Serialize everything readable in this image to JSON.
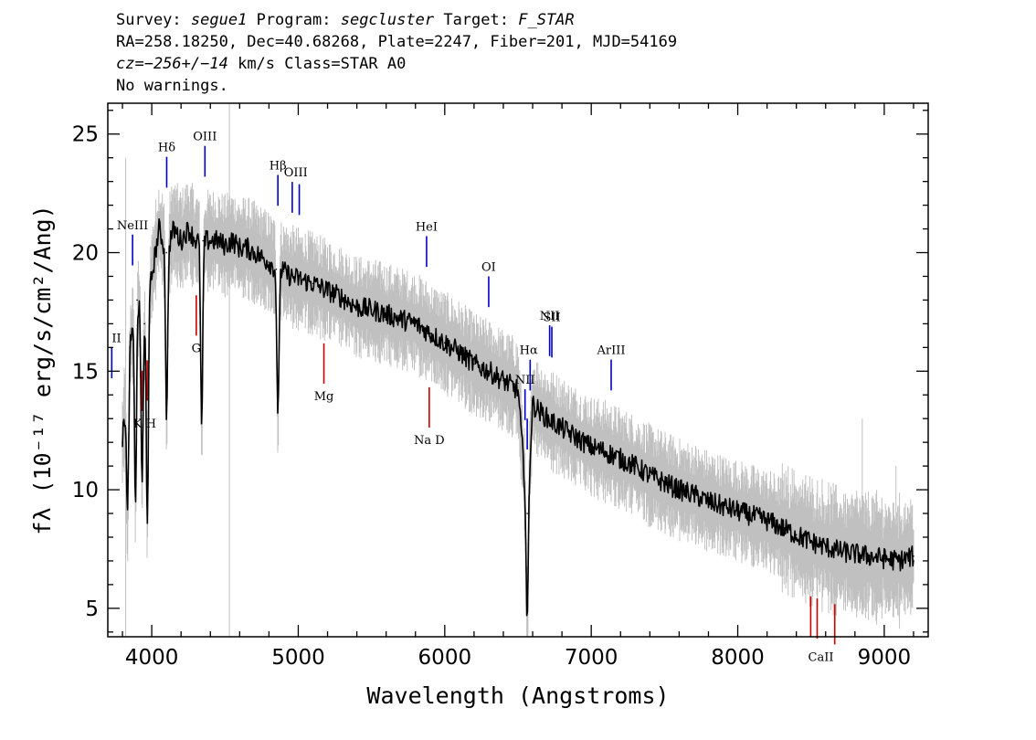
{
  "header": {
    "survey_label": "Survey:",
    "survey": "segue1",
    "program_label": "Program:",
    "program": "segcluster",
    "target_label": "Target:",
    "target": "F_STAR",
    "line2": "RA=258.18250, Dec=40.68268, Plate=2247, Fiber=201, MJD=54169",
    "cz_label": "cz=",
    "cz_value": "−256+/−14",
    "cz_rest": " km/s Class=STAR A0",
    "line4": "No warnings."
  },
  "chart_data": {
    "type": "line",
    "xlabel": "Wavelength (Angstroms)",
    "ylabel": "fλ (10⁻¹⁷ erg/s/cm²/Ang)",
    "xlim": [
      3700,
      9300
    ],
    "ylim": [
      3.8,
      26.3
    ],
    "x_ticks": [
      4000,
      5000,
      6000,
      7000,
      8000,
      9000
    ],
    "y_ticks": [
      5,
      10,
      15,
      20,
      25
    ],
    "series": [
      {
        "color": "#000000",
        "style": "spectrum",
        "x": [
          3800,
          3850,
          3900,
          3950,
          4000,
          4050,
          4100,
          4150,
          4200,
          4250,
          4300,
          4350,
          4400,
          4450,
          4500,
          4550,
          4600,
          4650,
          4700,
          4750,
          4800,
          4850,
          4900,
          4950,
          5000,
          5100,
          5200,
          5300,
          5400,
          5500,
          5600,
          5700,
          5800,
          5900,
          6000,
          6100,
          6200,
          6300,
          6400,
          6500,
          6563,
          6600,
          6700,
          6800,
          6900,
          7000,
          7100,
          7200,
          7300,
          7400,
          7500,
          7600,
          7700,
          7800,
          7900,
          8000,
          8100,
          8200,
          8300,
          8400,
          8500,
          8600,
          8700,
          8800,
          8900,
          9000,
          9100,
          9200
        ],
        "y": [
          12,
          16,
          18,
          17,
          19,
          21,
          20,
          21,
          20.5,
          21,
          20.5,
          20.5,
          20.5,
          20.5,
          20.3,
          20.5,
          20.2,
          20.2,
          20,
          19.8,
          19.6,
          19.3,
          19.2,
          19,
          18.9,
          18.7,
          18.4,
          18.1,
          17.7,
          17.6,
          17.4,
          17.2,
          17,
          16.6,
          16.2,
          15.8,
          15.3,
          15,
          14.6,
          14.2,
          9,
          13.6,
          13,
          12.6,
          12.2,
          11.8,
          11.6,
          11.3,
          11,
          10.6,
          10.3,
          10,
          9.8,
          9.5,
          9.3,
          9.1,
          8.9,
          8.7,
          8.4,
          8.1,
          7.8,
          7.6,
          7.4,
          7.3,
          7.2,
          7.1,
          7,
          7.2
        ]
      }
    ],
    "noise_color": "#c0c0c0",
    "emission_color": "#0000cc",
    "absorption_color": "#cc0000",
    "emission_lines": [
      {
        "label": "II",
        "wl": [
          3727
        ]
      },
      {
        "label": "NeIII",
        "wl": [
          3869
        ]
      },
      {
        "label": "Hδ",
        "wl": [
          4102
        ]
      },
      {
        "label": "OIII",
        "wl": [
          4363
        ]
      },
      {
        "label": "Hβ",
        "wl": [
          4861
        ]
      },
      {
        "label": "OIII",
        "wl": [
          4959,
          5007
        ]
      },
      {
        "label": "HeI",
        "wl": [
          5876
        ]
      },
      {
        "label": "OI",
        "wl": [
          6300
        ]
      },
      {
        "label": "NII",
        "wl": [
          6548
        ]
      },
      {
        "label": "Hα",
        "wl": [
          6563,
          6583
        ]
      },
      {
        "label": "NII",
        "wl": [
          6716
        ]
      },
      {
        "label": "SII",
        "wl": [
          6731
        ]
      },
      {
        "label": "ArIII",
        "wl": [
          7136
        ]
      }
    ],
    "absorption_lines": [
      {
        "label": "K H",
        "wl": [
          3934,
          3969
        ]
      },
      {
        "label": "G",
        "wl": [
          4304
        ]
      },
      {
        "label": "Mg",
        "wl": [
          5175
        ]
      },
      {
        "label": "Na  D",
        "wl": [
          5894
        ]
      },
      {
        "label": "CaII",
        "wl": [
          8498,
          8542,
          8662
        ]
      }
    ]
  }
}
